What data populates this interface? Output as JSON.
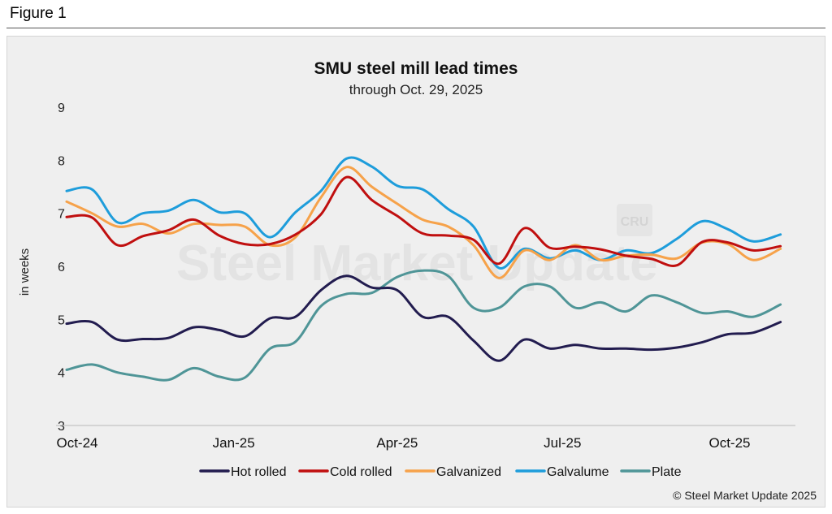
{
  "figure_label": "Figure 1",
  "copyright": "© Steel Market Update 2025",
  "watermark": {
    "text": "Steel Market Update",
    "logo_text": "CRU"
  },
  "colors": {
    "Hot rolled": "#221c4f",
    "Cold rolled": "#c00f0f",
    "Galvanized": "#f6a24a",
    "Galvalume": "#1e9ddb",
    "Plate": "#4f9597",
    "panel": "#efefef",
    "grid": "#cfcfcf"
  },
  "chart_data": {
    "type": "line",
    "title": "SMU steel mill lead times",
    "subtitle": "through Oct. 29, 2025",
    "xlabel": "",
    "ylabel": "in weeks",
    "ylim": [
      3,
      9
    ],
    "y_ticks": [
      "3",
      "4",
      "5",
      "6",
      "7",
      "8",
      "9"
    ],
    "x_range": [
      "2024-10-01",
      "2025-11-04"
    ],
    "x_ticks": [
      {
        "label": "Oct-24",
        "date": "2024-10-01"
      },
      {
        "label": "Jan-25",
        "date": "2025-01-01"
      },
      {
        "label": "Apr-25",
        "date": "2025-04-01"
      },
      {
        "label": "Jul-25",
        "date": "2025-07-01"
      },
      {
        "label": "Oct-25",
        "date": "2025-10-01"
      }
    ],
    "grid": false,
    "legend_position": "bottom",
    "x": [
      "2024-10-01",
      "2024-10-15",
      "2024-10-29",
      "2024-11-12",
      "2024-11-26",
      "2024-12-10",
      "2024-12-24",
      "2025-01-07",
      "2025-01-21",
      "2025-02-04",
      "2025-02-18",
      "2025-03-04",
      "2025-03-18",
      "2025-04-01",
      "2025-04-15",
      "2025-04-29",
      "2025-05-13",
      "2025-05-27",
      "2025-06-10",
      "2025-06-24",
      "2025-07-08",
      "2025-07-22",
      "2025-08-05",
      "2025-08-19",
      "2025-09-02",
      "2025-09-16",
      "2025-09-30",
      "2025-10-14",
      "2025-10-29"
    ],
    "series": [
      {
        "name": "Hot rolled",
        "values": [
          4.92,
          4.95,
          4.62,
          4.63,
          4.65,
          4.85,
          4.8,
          4.68,
          5.02,
          5.05,
          5.55,
          5.82,
          5.6,
          5.55,
          5.05,
          5.05,
          4.6,
          4.22,
          4.62,
          4.45,
          4.52,
          4.45,
          4.45,
          4.43,
          4.47,
          4.57,
          4.72,
          4.75,
          4.95
        ]
      },
      {
        "name": "Cold rolled",
        "values": [
          6.93,
          6.92,
          6.4,
          6.57,
          6.68,
          6.88,
          6.58,
          6.42,
          6.42,
          6.6,
          6.98,
          7.68,
          7.25,
          6.95,
          6.62,
          6.58,
          6.5,
          6.05,
          6.72,
          6.35,
          6.37,
          6.32,
          6.2,
          6.14,
          6.02,
          6.46,
          6.45,
          6.3,
          6.38
        ]
      },
      {
        "name": "Galvanized",
        "values": [
          7.22,
          7.0,
          6.75,
          6.8,
          6.62,
          6.8,
          6.78,
          6.75,
          6.4,
          6.55,
          7.3,
          7.87,
          7.5,
          7.18,
          6.88,
          6.75,
          6.4,
          5.78,
          6.3,
          6.12,
          6.4,
          6.12,
          6.2,
          6.22,
          6.15,
          6.45,
          6.42,
          6.12,
          6.33
        ]
      },
      {
        "name": "Galvalume",
        "values": [
          7.42,
          7.45,
          6.83,
          7.0,
          7.05,
          7.25,
          7.02,
          7.0,
          6.55,
          7.02,
          7.42,
          8.03,
          7.88,
          7.52,
          7.45,
          7.08,
          6.75,
          5.97,
          6.33,
          6.15,
          6.3,
          6.12,
          6.3,
          6.25,
          6.52,
          6.85,
          6.7,
          6.47,
          6.6
        ]
      },
      {
        "name": "Plate",
        "values": [
          4.05,
          4.15,
          4.0,
          3.92,
          3.86,
          4.08,
          3.92,
          3.9,
          4.45,
          4.58,
          5.25,
          5.48,
          5.5,
          5.8,
          5.92,
          5.82,
          5.22,
          5.22,
          5.62,
          5.62,
          5.22,
          5.32,
          5.15,
          5.45,
          5.32,
          5.12,
          5.15,
          5.05,
          5.28
        ]
      }
    ]
  }
}
